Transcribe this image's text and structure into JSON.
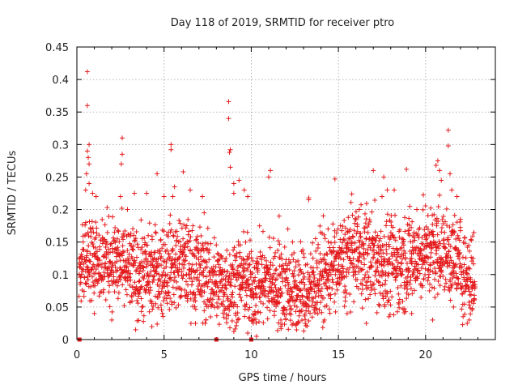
{
  "chart_data": {
    "type": "scatter",
    "title": "Day 118 of 2019, SRMTID for receiver ptro",
    "xlabel": "GPS time / hours",
    "ylabel": "SRMTID / TECUs",
    "xlim": [
      0,
      24
    ],
    "ylim": [
      0,
      0.45
    ],
    "grid": true,
    "x_ticks": [
      0,
      5,
      10,
      15,
      20
    ],
    "x_tick_labels": [
      "0",
      "5",
      "10",
      "15",
      "20"
    ],
    "y_ticks": [
      0,
      0.05,
      0.1,
      0.15,
      0.2,
      0.25,
      0.3,
      0.35,
      0.4,
      0.45
    ],
    "y_tick_labels": [
      "0",
      "0.05",
      "0.1",
      "0.15",
      "0.2",
      "0.25",
      "0.3",
      "0.35",
      "0.4",
      "0.45"
    ],
    "marker": "plus",
    "color": "#e41a1c",
    "series": [
      {
        "name": "SRMTID",
        "note": "dense scatter, approx. 0.03–0.22 TECU between 0.1 h and 22.8 h, mean about 0.10",
        "points": [
          [
            0.15,
            0.0
          ],
          [
            8.0,
            0.0
          ],
          [
            10.0,
            0.0
          ],
          [
            0.6,
            0.412
          ],
          [
            0.6,
            0.36
          ],
          [
            0.7,
            0.3
          ],
          [
            0.6,
            0.29
          ],
          [
            0.65,
            0.28
          ],
          [
            0.7,
            0.27
          ],
          [
            0.55,
            0.255
          ],
          [
            0.7,
            0.24
          ],
          [
            0.5,
            0.23
          ],
          [
            0.9,
            0.225
          ],
          [
            1.1,
            0.22
          ],
          [
            2.6,
            0.31
          ],
          [
            2.6,
            0.285
          ],
          [
            2.55,
            0.27
          ],
          [
            2.5,
            0.22
          ],
          [
            2.9,
            0.2
          ],
          [
            3.3,
            0.225
          ],
          [
            4.0,
            0.225
          ],
          [
            4.6,
            0.255
          ],
          [
            5.0,
            0.22
          ],
          [
            5.4,
            0.3
          ],
          [
            5.4,
            0.292
          ],
          [
            5.6,
            0.235
          ],
          [
            5.5,
            0.22
          ],
          [
            6.1,
            0.258
          ],
          [
            6.5,
            0.23
          ],
          [
            7.2,
            0.22
          ],
          [
            7.3,
            0.195
          ],
          [
            8.7,
            0.366
          ],
          [
            8.7,
            0.34
          ],
          [
            8.8,
            0.292
          ],
          [
            8.75,
            0.288
          ],
          [
            8.8,
            0.265
          ],
          [
            9.0,
            0.24
          ],
          [
            9.0,
            0.225
          ],
          [
            9.3,
            0.245
          ],
          [
            9.6,
            0.23
          ],
          [
            9.8,
            0.22
          ],
          [
            11.1,
            0.26
          ],
          [
            11.0,
            0.25
          ],
          [
            11.6,
            0.19
          ],
          [
            12.1,
            0.17
          ],
          [
            13.3,
            0.218
          ],
          [
            13.3,
            0.215
          ],
          [
            14.8,
            0.247
          ],
          [
            16.2,
            0.2
          ],
          [
            17.0,
            0.26
          ],
          [
            17.6,
            0.25
          ],
          [
            17.8,
            0.23
          ],
          [
            17.5,
            0.22
          ],
          [
            18.2,
            0.23
          ],
          [
            18.9,
            0.262
          ],
          [
            19.5,
            0.2
          ],
          [
            20.6,
            0.268
          ],
          [
            20.7,
            0.275
          ],
          [
            20.8,
            0.26
          ],
          [
            20.9,
            0.245
          ],
          [
            20.8,
            0.222
          ],
          [
            21.3,
            0.322
          ],
          [
            21.3,
            0.298
          ],
          [
            21.4,
            0.255
          ],
          [
            21.5,
            0.23
          ],
          [
            21.8,
            0.22
          ],
          [
            22.0,
            0.185
          ],
          [
            1.0,
            0.04
          ],
          [
            2.0,
            0.03
          ],
          [
            4.3,
            0.02
          ],
          [
            4.9,
            0.04
          ],
          [
            6.8,
            0.025
          ],
          [
            7.4,
            0.03
          ],
          [
            9.8,
            0.01
          ],
          [
            10.1,
            0.03
          ],
          [
            10.3,
            0.005
          ],
          [
            11.7,
            0.02
          ],
          [
            12.6,
            0.015
          ],
          [
            13.1,
            0.025
          ],
          [
            14.2,
            0.03
          ],
          [
            15.5,
            0.04
          ],
          [
            16.6,
            0.025
          ],
          [
            17.9,
            0.035
          ],
          [
            19.2,
            0.04
          ],
          [
            20.4,
            0.03
          ],
          [
            21.6,
            0.05
          ],
          [
            22.5,
            0.03
          ]
        ]
      }
    ]
  }
}
